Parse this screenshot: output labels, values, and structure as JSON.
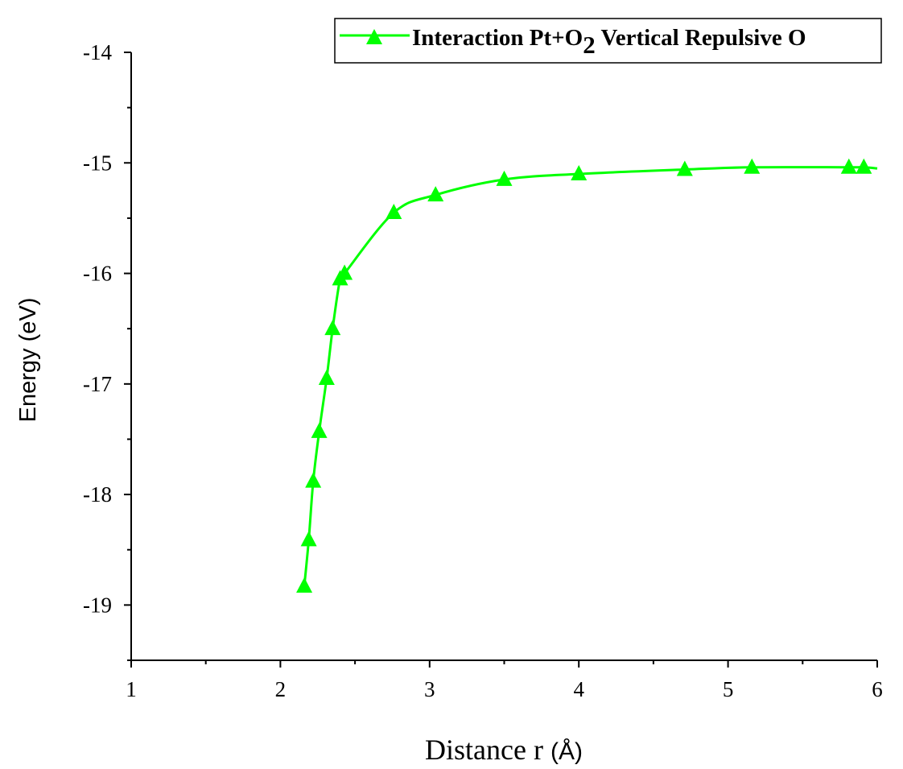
{
  "chart_data": {
    "type": "line",
    "title": "",
    "xlabel": "Distance r",
    "xlabel_unit": "(Å)",
    "ylabel": "Energy (eV)",
    "xlim": [
      1,
      6
    ],
    "ylim": [
      -19.5,
      -14
    ],
    "xticks": [
      1,
      2,
      3,
      4,
      5,
      6
    ],
    "yticks": [
      -14,
      -15,
      -16,
      -17,
      -18,
      -19
    ],
    "grid": false,
    "legend_position": "top-right",
    "series": [
      {
        "name": "Interaction Pt+O2 Vertical Repulsive O",
        "legend_main": "Interaction Pt+O",
        "legend_sub": "2",
        "legend_rest": " Vertical Repulsive O",
        "color": "#00ff00",
        "marker": "triangle-up",
        "x": [
          2.16,
          2.19,
          2.22,
          2.26,
          2.31,
          2.35,
          2.4,
          2.43,
          2.76,
          3.04,
          3.5,
          4.0,
          4.71,
          5.16,
          5.81,
          5.91
        ],
        "y": [
          -18.83,
          -18.41,
          -17.88,
          -17.43,
          -16.95,
          -16.5,
          -16.05,
          -16.0,
          -15.45,
          -15.29,
          -15.15,
          -15.1,
          -15.06,
          -15.04,
          -15.04,
          -15.04
        ]
      }
    ]
  }
}
